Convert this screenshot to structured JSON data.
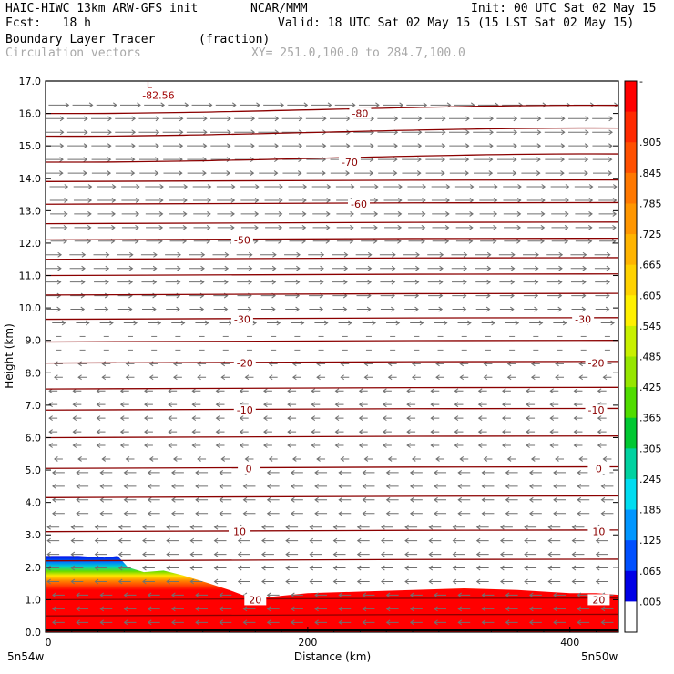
{
  "header": {
    "model": "HAIC-HIWC 13km ARW-GFS init",
    "org": "NCAR/MMM",
    "init": "Init: 00 UTC Sat 02 May 15",
    "fcst": "Fcst:   18 h",
    "valid": "Valid: 18 UTC Sat 02 May 15 (15 LST Sat 02 May 15)",
    "field": "Boundary Layer Tracer",
    "field_units": "(fraction)",
    "vectors": "Circulation vectors",
    "xy": "XY= 251.0,100.0 to 284.7,100.0"
  },
  "chart_data": {
    "type": "cross-section",
    "xlabel": "Distance (km)",
    "ylabel": "Height (km)",
    "xlim": [
      0,
      437
    ],
    "ylim": [
      0,
      17
    ],
    "x_ticks": [
      0,
      200,
      400
    ],
    "x_tick_labels": [
      "0",
      "200",
      "400"
    ],
    "y_ticks": [
      0,
      1,
      2,
      3,
      4,
      5,
      6,
      7,
      8,
      9,
      10,
      11,
      12,
      13,
      14,
      15,
      16,
      17
    ],
    "y_tick_labels": [
      "0.0",
      "1.0",
      "2.0",
      "3.0",
      "4.0",
      "5.0",
      "6.0",
      "7.0",
      "8.0",
      "9.0",
      "10.0",
      "11.0",
      "12.0",
      "13.0",
      "14.0",
      "15.0",
      "16.0",
      "17.0"
    ],
    "left_endpoint": "5n54w",
    "right_endpoint": "5n50w",
    "colorbar": {
      "labels": [
        "-",
        ".905",
        ".845",
        ".785",
        ".725",
        ".665",
        ".605",
        ".545",
        ".485",
        ".425",
        ".365",
        ".305",
        ".245",
        ".185",
        ".125",
        ".065",
        ".005"
      ],
      "colors": [
        "#ff0000",
        "#ff2a00",
        "#ff5000",
        "#ff7800",
        "#ff9600",
        "#ffb400",
        "#ffd200",
        "#fff000",
        "#c8f000",
        "#96e600",
        "#50dc00",
        "#00c832",
        "#00d2a0",
        "#00dcf0",
        "#0096ff",
        "#0050ff",
        "#0000e6",
        "#ffffff"
      ]
    },
    "pbl_top": {
      "x": [
        0,
        25,
        45,
        55,
        63,
        75,
        90,
        105,
        125,
        140,
        150,
        160,
        175,
        200,
        240,
        280,
        320,
        360,
        380,
        400,
        420,
        437
      ],
      "y": [
        2.35,
        2.35,
        2.3,
        2.35,
        2.0,
        1.85,
        1.9,
        1.75,
        1.5,
        1.3,
        1.15,
        1.05,
        1.1,
        1.2,
        1.25,
        1.3,
        1.35,
        1.3,
        1.25,
        1.2,
        1.2,
        1.15
      ]
    },
    "terrain": {
      "x": [
        0,
        437
      ],
      "y": [
        0,
        0
      ]
    },
    "temperature_contours": [
      {
        "label": "-80",
        "height": 16.0,
        "label_x": 240
      },
      {
        "label": "-70",
        "height": 14.5,
        "label_x": 232
      },
      {
        "label": "-60",
        "height": 13.2,
        "label_x": 239
      },
      {
        "label": "-50",
        "height": 12.1,
        "label_x": 150
      },
      {
        "label": "-30",
        "height": 9.65,
        "label_x": 150
      },
      {
        "label": "-30",
        "height": 9.65,
        "label_x": 410
      },
      {
        "label": "-20",
        "height": 8.3,
        "label_x": 152
      },
      {
        "label": "-20",
        "height": 8.3,
        "label_x": 420
      },
      {
        "label": "-10",
        "height": 6.85,
        "label_x": 152
      },
      {
        "label": "-10",
        "height": 6.85,
        "label_x": 420
      },
      {
        "label": "0",
        "height": 5.05,
        "label_x": 155
      },
      {
        "label": "0",
        "height": 5.05,
        "label_x": 422
      },
      {
        "label": "10",
        "height": 3.1,
        "label_x": 148
      },
      {
        "label": "10",
        "height": 3.1,
        "label_x": 422
      },
      {
        "label": "20",
        "height": 1.0,
        "label_x": 160
      },
      {
        "label": "20",
        "height": 1.0,
        "label_x": 422
      }
    ],
    "extra_isolines": [
      16.0,
      15.3,
      14.5,
      13.9,
      13.2,
      12.6,
      12.1,
      11.5,
      11.0,
      10.4,
      9.65,
      8.95,
      8.3,
      7.5,
      6.85,
      6.0,
      5.05,
      4.15,
      3.1,
      2.2,
      1.0,
      0.5
    ],
    "low_marker": {
      "symbol": "L",
      "value": "-82.56",
      "x": 75,
      "height": 16.9
    }
  }
}
